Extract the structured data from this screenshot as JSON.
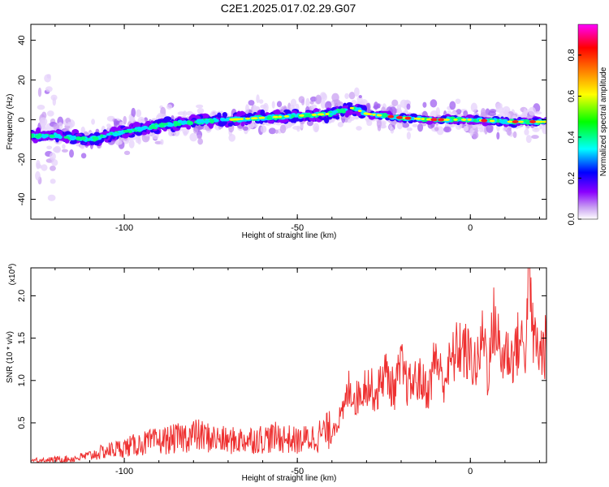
{
  "title": "C2E1.2025.017.02.29.G07",
  "chart_data": [
    {
      "type": "heatmap",
      "xlabel": "Height of straight line (km)",
      "ylabel": "Frequency (Hz)",
      "xlim": [
        -127,
        22
      ],
      "ylim": [
        -50,
        48
      ],
      "xticks": [
        -100,
        -50,
        0
      ],
      "xtick_labels": [
        "-100",
        "-50",
        "0"
      ],
      "yticks": [
        -40,
        -20,
        0,
        20,
        40
      ],
      "ytick_labels": [
        "-40",
        "-20",
        "0",
        "20",
        "40"
      ],
      "ridge": {
        "x": [
          -127,
          -120,
          -110,
          -105,
          -100,
          -90,
          -80,
          -70,
          -60,
          -50,
          -40,
          -34,
          -30,
          -20,
          -10,
          0,
          10,
          22
        ],
        "y": [
          -8,
          -8,
          -10,
          -8,
          -6,
          -3,
          -1,
          0,
          1,
          2,
          3,
          6,
          3,
          1,
          0,
          0,
          -1,
          -1
        ]
      },
      "colorbar": {
        "label": "Normalized spectral amplitude",
        "range": [
          0,
          0.95
        ],
        "ticks": [
          0.0,
          0.2,
          0.4,
          0.6,
          0.8
        ],
        "tick_labels": [
          "0.0",
          "0.2",
          "0.4",
          "0.6",
          "0.8"
        ],
        "colors": [
          "#ffffff",
          "#c9a0f2",
          "#8a00ff",
          "#0000ff",
          "#00ffff",
          "#00ff00",
          "#ffff00",
          "#ff8000",
          "#ff0000",
          "#ff00ff"
        ]
      },
      "grid": false
    },
    {
      "type": "line",
      "xlabel": "Height of straight line (km)",
      "ylabel": "SNR (10 * v/v)",
      "scale_label": "(x10",
      "scale_exponent": "4",
      "scale_close": ")",
      "xlim": [
        -127,
        22
      ],
      "ylim": [
        0.03,
        2.33
      ],
      "xticks": [
        -100,
        -50,
        0
      ],
      "xtick_labels": [
        "-100",
        "-50",
        "0"
      ],
      "yticks": [
        0.5,
        1.0,
        1.5,
        2.0
      ],
      "ytick_labels": [
        "0.5",
        "1.0",
        "1.5",
        "2.0"
      ],
      "color": "#ee3030",
      "x": [
        -127,
        -120,
        -115,
        -110,
        -105,
        -100,
        -95,
        -90,
        -85,
        -80,
        -75,
        -70,
        -65,
        -60,
        -55,
        -50,
        -45,
        -40,
        -37,
        -35,
        -33,
        -30,
        -27,
        -25,
        -22,
        -20,
        -18,
        -15,
        -12,
        -10,
        -8,
        -5,
        -3,
        0,
        2,
        4,
        5,
        7,
        9,
        10,
        12,
        14,
        16,
        17,
        18,
        20,
        22
      ],
      "y": [
        0.06,
        0.07,
        0.08,
        0.12,
        0.18,
        0.22,
        0.27,
        0.3,
        0.33,
        0.38,
        0.34,
        0.3,
        0.32,
        0.33,
        0.35,
        0.3,
        0.35,
        0.45,
        0.6,
        0.95,
        0.8,
        1.0,
        0.85,
        1.15,
        0.9,
        1.2,
        0.95,
        1.05,
        0.9,
        1.35,
        1.0,
        1.3,
        1.45,
        1.3,
        1.2,
        1.65,
        1.1,
        1.8,
        1.25,
        1.4,
        1.3,
        1.5,
        1.45,
        2.1,
        1.6,
        1.35,
        1.45
      ]
    }
  ]
}
